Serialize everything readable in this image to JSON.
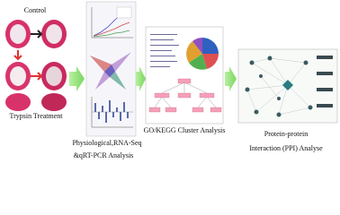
{
  "panels": {
    "fruit": {
      "top_label": "Control",
      "bottom_label": "Trypsin Treatment"
    },
    "physiology": {
      "label_lines": [
        "Physiological,RNA-Seq",
        "&qRT-PCR Analysis"
      ]
    },
    "go_kegg": {
      "label": "GO/KEGG Cluster Analysis"
    },
    "ppi": {
      "label_lines": [
        "Protein-protein",
        "Interaction (PPI) Analyse"
      ]
    }
  }
}
